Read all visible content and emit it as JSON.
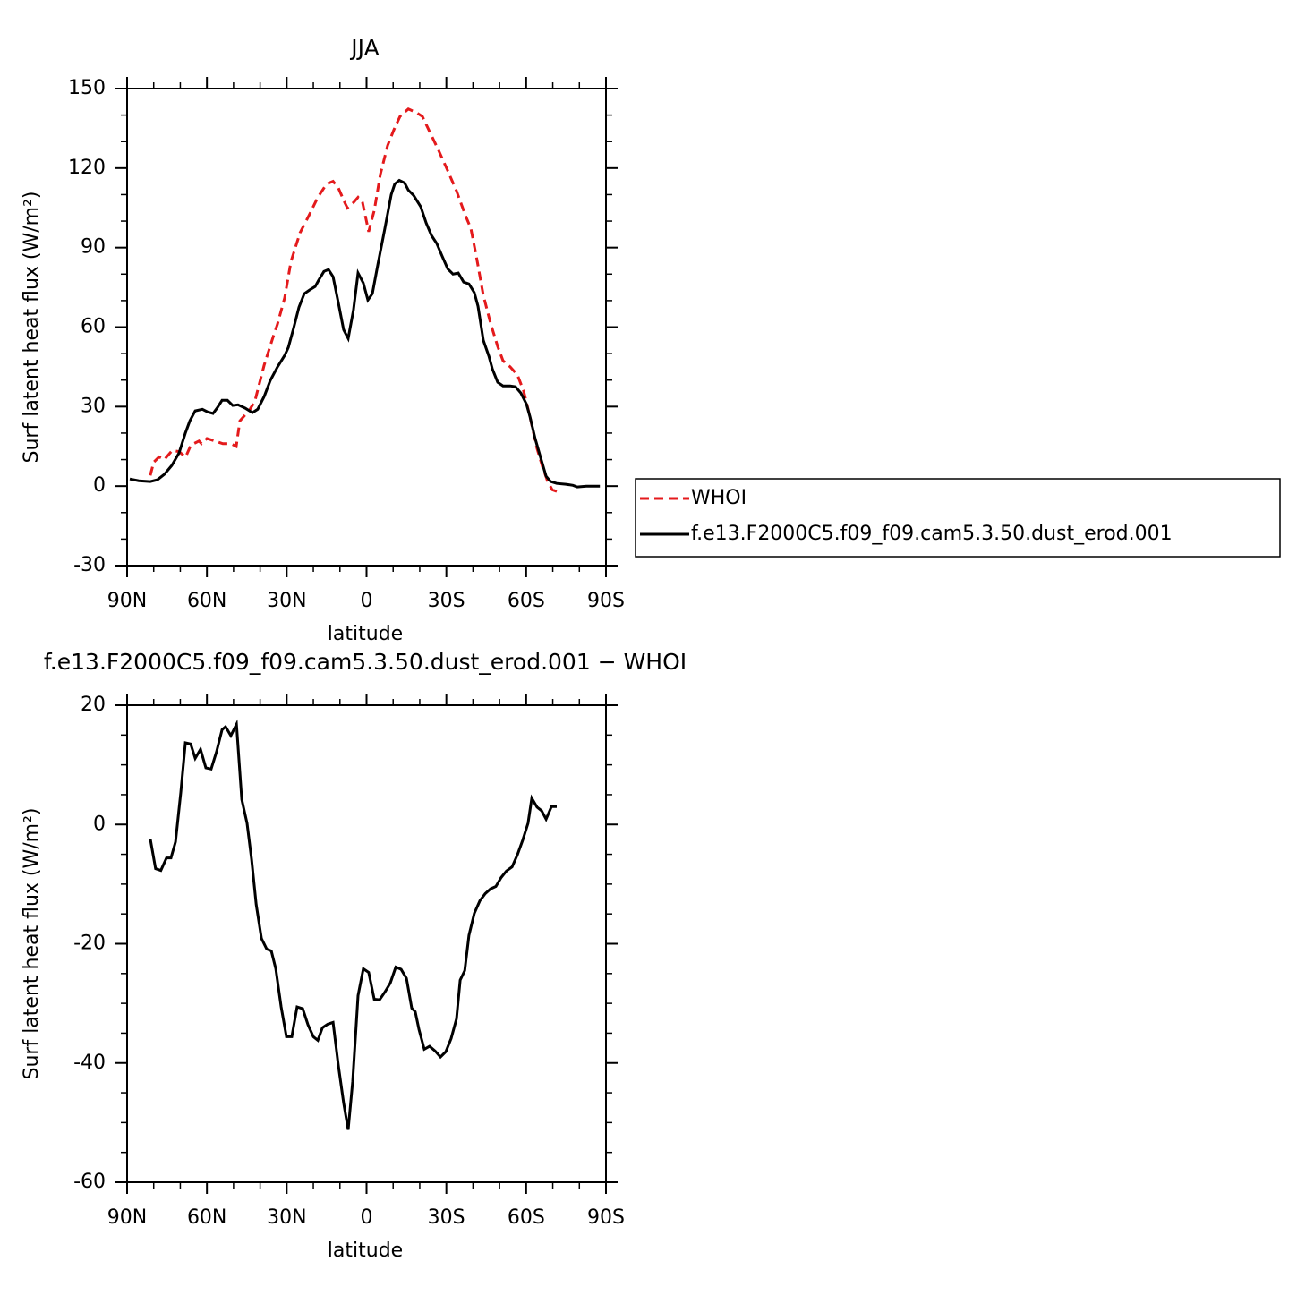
{
  "chart_data": [
    {
      "type": "line",
      "title": "JJA",
      "x_label": "latitude",
      "y_label": "Surf latent heat flux (W/m²)",
      "xlim": [
        90,
        -90
      ],
      "xticks": [
        {
          "value": 90,
          "label": "90N"
        },
        {
          "value": 60,
          "label": "60N"
        },
        {
          "value": 30,
          "label": "30N"
        },
        0,
        {
          "value": -30,
          "label": "30S"
        },
        {
          "value": -60,
          "label": "60S"
        },
        {
          "value": -90,
          "label": "90S"
        }
      ],
      "ylim": [
        -30,
        150
      ],
      "yticks": [
        -30,
        0,
        30,
        60,
        90,
        120,
        150
      ],
      "legend": "right",
      "series": [
        {
          "name": "WHOI",
          "color": "#e41a1c",
          "dash": "dashed",
          "x": [
            81.3,
            80,
            78,
            76,
            73,
            70.5,
            68,
            66,
            63,
            62,
            60,
            57,
            54,
            51,
            49,
            47.6,
            44,
            42,
            38.5,
            35,
            33.5,
            30.8,
            28.4,
            25,
            21.7,
            18.3,
            15,
            12.6,
            10.6,
            8.2,
            7.2,
            4.9,
            3.2,
            1.5,
            -0.8,
            -2.9,
            -5.2,
            -7.9,
            -10.3,
            -12.6,
            -15.7,
            -18.7,
            -21,
            -23.7,
            -27.1,
            -30.5,
            -33.8,
            -37.2,
            -39.2,
            -41.2,
            -43.9,
            -46.6,
            -49.3,
            -51.3,
            -54,
            -56.7,
            -59,
            -61.4,
            -64,
            -66.1,
            -68.1,
            -69.8,
            -71.5
          ],
          "values": [
            4,
            9,
            11,
            10,
            13.5,
            13,
            11,
            15.5,
            17,
            16,
            18,
            17,
            16,
            16,
            15,
            24.6,
            28.7,
            32,
            45.6,
            56.7,
            61,
            71,
            84.8,
            95.6,
            102,
            109,
            114,
            115,
            112.5,
            107,
            105,
            107,
            109,
            107,
            96,
            104,
            117.7,
            128.5,
            134.5,
            139.5,
            142.3,
            141,
            139.5,
            133.8,
            126.7,
            119,
            111.4,
            102,
            97.3,
            87,
            72,
            61.5,
            52.7,
            47.3,
            45,
            42,
            36,
            26.3,
            14.5,
            7.4,
            1.7,
            -1.4,
            -2
          ]
        },
        {
          "name": "f.e13.F2000C5.f09_f09.cam5.3.50.dust_erod.001",
          "color": "#000000",
          "dash": "solid",
          "x": [
            89,
            85.6,
            81.3,
            78.6,
            76,
            73.2,
            70.5,
            68.1,
            66.4,
            64.4,
            61.7,
            59.7,
            57.7,
            56,
            54.3,
            52.3,
            50.3,
            48.3,
            45.6,
            42.9,
            40.9,
            38.5,
            36.2,
            33.5,
            30.8,
            29.4,
            27.4,
            25.4,
            23.4,
            21.4,
            19.3,
            18,
            16,
            14.3,
            12.6,
            10.6,
            8.6,
            6.9,
            4.9,
            3.2,
            1.2,
            -0.5,
            -2.2,
            -4.2,
            -6.9,
            -9.3,
            -10.6,
            -12.3,
            -14.3,
            -15.7,
            -17.7,
            -20.4,
            -22.4,
            -24.4,
            -26.4,
            -28.4,
            -30.5,
            -32.5,
            -34.5,
            -36.5,
            -38.5,
            -40.5,
            -41.9,
            -43.9,
            -46,
            -47.3,
            -49.3,
            -51.3,
            -54,
            -56,
            -58,
            -60.1,
            -61.4,
            -63.4,
            -65.5,
            -67.5,
            -69.2,
            -71.5,
            -74.9,
            -77.6,
            -79.2,
            -82.6,
            -87.7
          ],
          "values": [
            2.7,
            2,
            1.7,
            2.4,
            4.4,
            7.8,
            12.5,
            20,
            24.6,
            28.4,
            29,
            28,
            27.4,
            29.7,
            32.4,
            32.4,
            30.4,
            30.7,
            29.4,
            27.7,
            29,
            33.8,
            39.8,
            44.9,
            49.3,
            52.3,
            59.7,
            67.5,
            72.6,
            74,
            75.3,
            77.7,
            81,
            81.7,
            79,
            69.2,
            59,
            55.7,
            66.5,
            80.4,
            76.6,
            70.2,
            72.6,
            83.4,
            97.3,
            110,
            114,
            115.4,
            114.4,
            111.7,
            109.7,
            105.4,
            99.3,
            94.6,
            91.5,
            86.8,
            82,
            80,
            80.4,
            77,
            76.3,
            73,
            67.9,
            55,
            49,
            44.2,
            39.2,
            37.8,
            37.8,
            37.5,
            35.1,
            31,
            26.3,
            17.9,
            10.5,
            3.7,
            1.7,
            1,
            0.7,
            0.3,
            -0.3,
            0,
            0
          ]
        }
      ]
    },
    {
      "type": "line",
      "title": "f.e13.F2000C5.f09_f09.cam5.3.50.dust_erod.001 − WHOI",
      "x_label": "latitude",
      "y_label": "Surf latent heat flux (W/m²)",
      "xlim": [
        90,
        -90
      ],
      "xticks": [
        {
          "value": 90,
          "label": "90N"
        },
        {
          "value": 60,
          "label": "60N"
        },
        {
          "value": 30,
          "label": "30N"
        },
        0,
        {
          "value": -30,
          "label": "30S"
        },
        {
          "value": -60,
          "label": "60S"
        },
        {
          "value": -90,
          "label": "90S"
        }
      ],
      "ylim": [
        -60,
        20
      ],
      "yticks": [
        -60,
        -40,
        -20,
        0,
        20
      ],
      "color": "#000000",
      "x": [
        81.3,
        79.3,
        77.3,
        75.2,
        73.5,
        71.8,
        69.8,
        68.1,
        66.1,
        64.4,
        62.4,
        60.4,
        58.4,
        56.4,
        54.3,
        53,
        51,
        48.9,
        46.9,
        44.9,
        43.2,
        41.5,
        39.5,
        37.5,
        35.8,
        34.1,
        32.1,
        30.1,
        28.1,
        26.1,
        24,
        22,
        20,
        18.3,
        16.6,
        14.6,
        12.6,
        10.6,
        8.6,
        6.9,
        5.2,
        3.2,
        1.2,
        -0.8,
        -2.9,
        -4.9,
        -6.9,
        -8.9,
        -11,
        -13,
        -15,
        -17,
        -18.3,
        -19.7,
        -21.7,
        -23.7,
        -25.8,
        -27.8,
        -29.8,
        -31.8,
        -33.8,
        -35.2,
        -36.9,
        -38.5,
        -40.5,
        -42.6,
        -44.6,
        -46.6,
        -48.6,
        -50.6,
        -52.6,
        -54.7,
        -56.7,
        -58.7,
        -60.7,
        -62.1,
        -64.1,
        -65.8,
        -67.5,
        -69.5,
        -71.5
      ],
      "values": [
        -2.4,
        -7.4,
        -7.7,
        -5.6,
        -5.6,
        -2.9,
        5.4,
        13.7,
        13.5,
        11.1,
        12.6,
        9.5,
        9.3,
        12.2,
        15.9,
        16.4,
        14.9,
        16.8,
        4.2,
        0.2,
        -5.9,
        -13.4,
        -19.1,
        -20.9,
        -21.2,
        -24.2,
        -30.6,
        -35.6,
        -35.6,
        -30.6,
        -30.9,
        -33.6,
        -35.6,
        -36.2,
        -34.1,
        -33.5,
        -33.2,
        -40.4,
        -46.7,
        -51.2,
        -43.1,
        -28.7,
        -24.2,
        -24.8,
        -29.3,
        -29.4,
        -28.1,
        -26.6,
        -23.9,
        -24.3,
        -25.8,
        -30.8,
        -31.4,
        -34.4,
        -37.7,
        -37.2,
        -38,
        -39,
        -38.1,
        -35.9,
        -32.6,
        -26.1,
        -24.5,
        -18.6,
        -14.9,
        -12.8,
        -11.6,
        -10.8,
        -10.4,
        -8.9,
        -7.8,
        -7.1,
        -5.1,
        -2.6,
        0.2,
        4.4,
        2.9,
        2.3,
        0.9,
        3,
        3
      ]
    }
  ]
}
